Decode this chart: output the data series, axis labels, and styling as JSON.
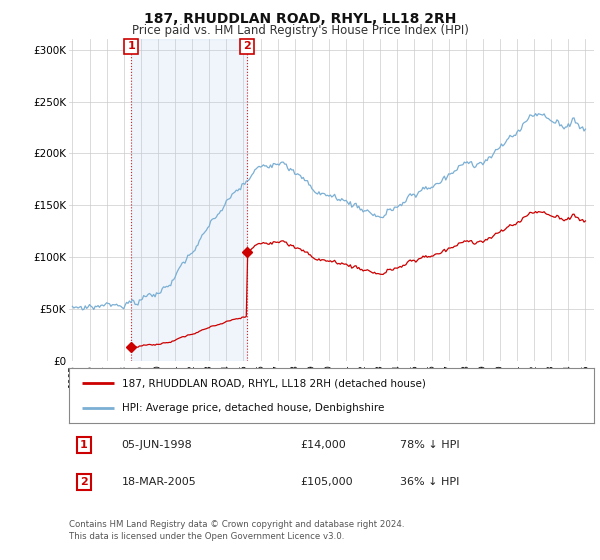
{
  "title": "187, RHUDDLAN ROAD, RHYL, LL18 2RH",
  "subtitle": "Price paid vs. HM Land Registry's House Price Index (HPI)",
  "hpi_color": "#7bafd4",
  "hpi_fill_color": "#ddeeff",
  "price_color": "#cc0000",
  "bg_color": "#ffffff",
  "grid_color": "#cccccc",
  "ylim": [
    0,
    310000
  ],
  "xlim_start": 1994.8,
  "xlim_end": 2025.5,
  "transaction1_date": 1998.43,
  "transaction1_price": 14000,
  "transaction1_label": "1",
  "transaction2_date": 2005.21,
  "transaction2_price": 105000,
  "transaction2_label": "2",
  "legend_line1": "187, RHUDDLAN ROAD, RHYL, LL18 2RH (detached house)",
  "legend_line2": "HPI: Average price, detached house, Denbighshire",
  "table_row1_num": "1",
  "table_row1_date": "05-JUN-1998",
  "table_row1_price": "£14,000",
  "table_row1_hpi": "78% ↓ HPI",
  "table_row2_num": "2",
  "table_row2_date": "18-MAR-2005",
  "table_row2_price": "£105,000",
  "table_row2_hpi": "36% ↓ HPI",
  "footnote": "Contains HM Land Registry data © Crown copyright and database right 2024.\nThis data is licensed under the Open Government Licence v3.0.",
  "yticks": [
    0,
    50000,
    100000,
    150000,
    200000,
    250000,
    300000
  ],
  "ytick_labels": [
    "£0",
    "£50K",
    "£100K",
    "£150K",
    "£200K",
    "£250K",
    "£300K"
  ]
}
